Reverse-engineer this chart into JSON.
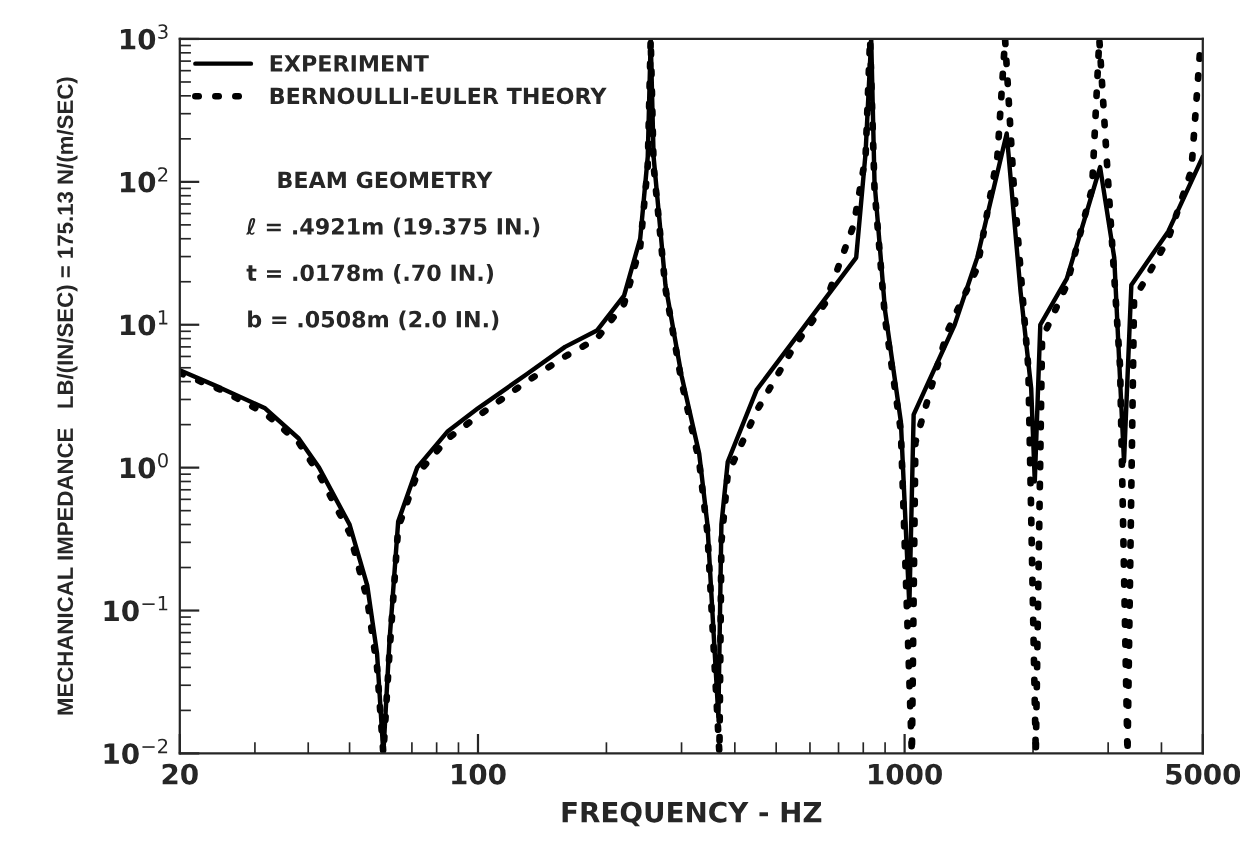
{
  "chart_data": {
    "type": "line",
    "xlabel": "FREQUENCY - HZ",
    "ylabel": "MECHANICAL IMPEDANCE   LB/(IN/SEC) = 175.13 N/(m/SEC)",
    "log": "xy",
    "xlim": [
      20,
      5000
    ],
    "xticks": [
      20,
      100,
      1000,
      5000
    ],
    "ylim": [
      0.01,
      1000
    ],
    "yticks": [
      {
        "value": 0.01,
        "label": "10$^{−2}$"
      },
      {
        "value": 0.1,
        "label": "10$^{−1}$"
      },
      {
        "value": 1,
        "label": "10$^{0}$"
      },
      {
        "value": 10,
        "label": "10$^{1}$"
      },
      {
        "value": 100,
        "label": "10$^{2}$"
      },
      {
        "value": 1000,
        "label": "10$^{3}$"
      }
    ],
    "grid": false,
    "legend": "top left",
    "marker": "none",
    "annotations": [
      "BEAM GEOMETRY",
      "ℓ = .4921m (19.375 IN.)",
      "t = .0178m (.70 IN.)",
      "b = .0508m (2.0 IN.)"
    ],
    "series": [
      {
        "name": "EXPERIMENT",
        "color": "#000000",
        "line_style": "solid",
        "x": [
          20,
          25,
          31.7,
          38,
          42.4,
          50,
          55,
          58,
          60,
          62,
          65,
          72,
          85,
          100,
          130,
          160,
          190,
          220,
          240,
          250,
          254,
          258,
          275,
          300,
          330,
          345,
          366,
          372,
          385,
          450,
          620,
          770,
          810,
          835,
          850,
          900,
          980,
          1026,
          1050,
          1310,
          1480,
          1735,
          1870,
          1980,
          2019,
          2080,
          2400,
          2872,
          3100,
          3268,
          3400,
          4150,
          5000
        ],
        "values": [
          4.8,
          3.6,
          2.6,
          1.6,
          1.0,
          0.4,
          0.15,
          0.05,
          0.01,
          0.06,
          0.42,
          1.0,
          1.8,
          2.6,
          4.5,
          7,
          9.1,
          16,
          40,
          150,
          1000,
          150,
          19,
          4.4,
          1.25,
          0.4,
          0.018,
          0.4,
          1.1,
          3.5,
          12.5,
          29.5,
          159,
          1000,
          100,
          12.5,
          2.1,
          0.108,
          2.35,
          10,
          29.5,
          218,
          17,
          3.6,
          0.8,
          10,
          21,
          127,
          29.5,
          1.1,
          19,
          45,
          150
        ]
      },
      {
        "name": "BERNOULLI-EULER THEORY",
        "color": "#000000",
        "line_style": "dotted",
        "x": [
          20,
          25,
          31.7,
          38,
          42.4,
          50,
          55,
          58,
          60,
          62,
          65,
          72,
          85,
          100,
          130,
          160,
          190,
          220,
          240,
          250,
          254,
          258,
          275,
          300,
          330,
          345,
          368,
          372,
          385,
          450,
          550,
          650,
          760,
          810,
          830,
          850,
          900,
          980,
          1040,
          1060,
          1260,
          1480,
          1650,
          1720,
          1800,
          1950,
          2030,
          2100,
          2400,
          2750,
          2860,
          3000,
          3200,
          3330,
          3450,
          4150,
          4700,
          4950
        ],
        "values": [
          4.6,
          3.5,
          2.4,
          1.5,
          0.9,
          0.35,
          0.12,
          0.04,
          0.01,
          0.05,
          0.38,
          0.9,
          1.6,
          2.3,
          4,
          6,
          8,
          14,
          35,
          130,
          1000,
          130,
          18,
          4,
          1.1,
          0.35,
          0.01,
          0.3,
          0.9,
          2.5,
          7,
          14,
          50,
          150,
          1000,
          90,
          11,
          1.8,
          0.01,
          1.5,
          9,
          25,
          150,
          1000,
          100,
          5,
          0.01,
          8,
          19,
          90,
          1000,
          100,
          5,
          0.01,
          15,
          40,
          120,
          1000
        ]
      }
    ]
  }
}
